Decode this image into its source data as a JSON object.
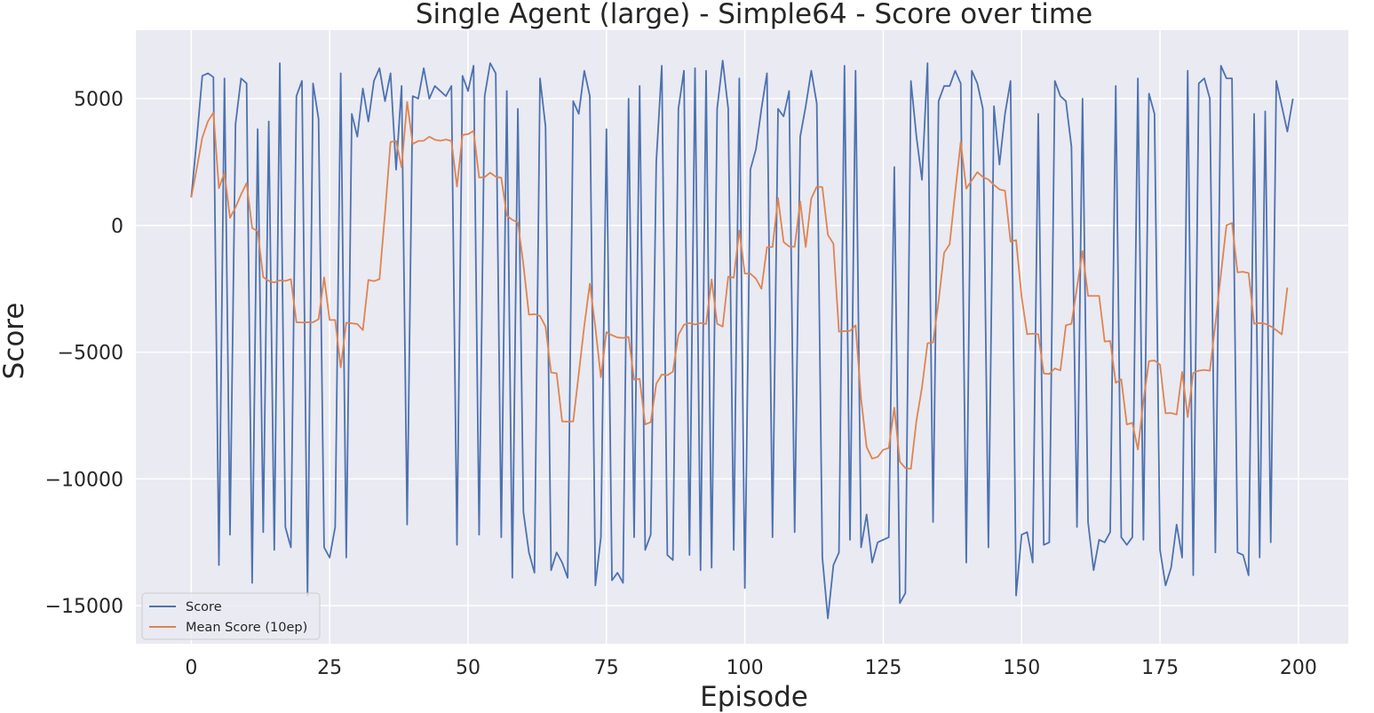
{
  "chart_data": {
    "type": "line",
    "title": "Single Agent (large) - Simple64 - Score over time",
    "xlabel": "Episode",
    "ylabel": "Score",
    "xlim": [
      -10,
      209
    ],
    "ylim": [
      -16500,
      7700
    ],
    "xticks": [
      0,
      25,
      50,
      75,
      100,
      125,
      150,
      175,
      200
    ],
    "yticks": [
      -15000,
      -10000,
      -5000,
      0,
      5000
    ],
    "xtick_labels": [
      "0",
      "25",
      "50",
      "75",
      "100",
      "125",
      "150",
      "175",
      "200"
    ],
    "ytick_labels": [
      "−15000",
      "−10000",
      "−5000",
      "0",
      "5000"
    ],
    "grid": true,
    "legend_position": "lower-left",
    "colors": {
      "background": "#eaeaf2",
      "grid": "#ffffff",
      "score": "#4c72b0",
      "mean": "#dd8452"
    },
    "series": [
      {
        "name": "Score",
        "x_start": 0,
        "values": [
          1100,
          3400,
          5900,
          6000,
          5850,
          -13400,
          5800,
          -12200,
          4000,
          5800,
          5600,
          -14100,
          3800,
          -12100,
          4100,
          -12800,
          6400,
          -11900,
          -12700,
          5100,
          5700,
          -14600,
          5600,
          4200,
          -12700,
          -13100,
          -11900,
          6000,
          -13100,
          4400,
          3500,
          5400,
          4100,
          5700,
          6200,
          4900,
          6000,
          2200,
          5500,
          -11800,
          5100,
          5000,
          6200,
          5000,
          5500,
          5300,
          5100,
          5500,
          -12600,
          5900,
          5300,
          6300,
          -12200,
          5100,
          6400,
          6000,
          -12300,
          5300,
          -13900,
          4600,
          -11300,
          -12900,
          -13700,
          5800,
          3900,
          -13600,
          -12900,
          -13300,
          -13900,
          4900,
          4400,
          6100,
          5100,
          -14200,
          -12300,
          3800,
          -14000,
          -13700,
          -14100,
          5000,
          -12300,
          5500,
          -12800,
          -12200,
          2500,
          6300,
          -13000,
          -13200,
          4600,
          6100,
          -13000,
          6200,
          -13600,
          6100,
          -13500,
          4600,
          6500,
          4600,
          -12800,
          5800,
          -14300,
          2200,
          3000,
          4600,
          6000,
          -12300,
          4600,
          4300,
          5300,
          -12100,
          3500,
          4700,
          6100,
          4800,
          -13100,
          -15500,
          -13400,
          -12900,
          6300,
          -12400,
          6100,
          -12700,
          -11400,
          -13300,
          -12500,
          -12400,
          -12300,
          2300,
          -14900,
          -14500,
          5700,
          3500,
          1800,
          6400,
          -11700,
          4900,
          5500,
          5500,
          6100,
          5600,
          -13300,
          6100,
          5600,
          4600,
          -12700,
          4700,
          2400,
          4400,
          5700,
          -14600,
          -12200,
          -12100,
          -13300,
          4400,
          -12600,
          -12500,
          5700,
          5100,
          4900,
          3100,
          -11900,
          5000,
          -11700,
          -13600,
          -12400,
          -12500,
          -12100,
          5500,
          -12300,
          -12600,
          -12300,
          5800,
          -12400,
          5200,
          4400,
          -12800,
          -14200,
          -13500,
          -11800,
          -13100,
          6100,
          -13800,
          5600,
          5800,
          5000,
          -12900,
          6300,
          5800,
          5800,
          -12900,
          -13000,
          -13800,
          4400,
          -13100,
          4500,
          -12500,
          5700,
          4700,
          3700,
          5000
        ]
      },
      {
        "name": "Mean Score (10ep)",
        "x_start": 0,
        "values": [
          1100,
          2250,
          3467,
          4100,
          4450,
          1467,
          2086,
          300,
          711,
          1220,
          1670,
          -100,
          -230,
          -2040,
          -2190,
          -2250,
          -2170,
          -2190,
          -2120,
          -3820,
          -3830,
          -3820,
          -3820,
          -3700,
          -2050,
          -3730,
          -3730,
          -5600,
          -3840,
          -3860,
          -3890,
          -4130,
          -2150,
          -2200,
          -2120,
          480,
          3290,
          3330,
          2290,
          4870,
          3210,
          3330,
          3340,
          3500,
          3380,
          3340,
          3390,
          3330,
          1530,
          3570,
          3600,
          3730,
          1890,
          1900,
          2080,
          1920,
          1880,
          390,
          220,
          120,
          -1540,
          -3520,
          -3500,
          -3570,
          -3990,
          -5800,
          -5830,
          -7730,
          -7740,
          -7730,
          -5850,
          -3960,
          -2300,
          -4020,
          -5990,
          -4210,
          -4330,
          -4420,
          -4440,
          -4400,
          -6080,
          -6050,
          -7850,
          -7760,
          -6250,
          -5880,
          -5910,
          -5770,
          -4320,
          -3920,
          -3850,
          -3910,
          -3850,
          -3890,
          -2130,
          -3880,
          -3990,
          -2020,
          -2060,
          -200,
          -1900,
          -1900,
          -2100,
          -2500,
          -860,
          -850,
          1080,
          -650,
          -830,
          -840,
          950,
          -850,
          1060,
          1530,
          1510,
          -370,
          -720,
          -4190,
          -4170,
          -4160,
          -3940,
          -6840,
          -8740,
          -9200,
          -9130,
          -8850,
          -8780,
          -7190,
          -9320,
          -9570,
          -9600,
          -7700,
          -6390,
          -4650,
          -4620,
          -3000,
          -1080,
          -740,
          1320,
          3300,
          1450,
          1780,
          2100,
          1910,
          1810,
          1600,
          1420,
          1370,
          -640,
          -580,
          -2820,
          -4290,
          -4270,
          -4290,
          -5840,
          -5860,
          -5640,
          -5720,
          -3940,
          -3880,
          -2450,
          -1010,
          -2780,
          -2780,
          -2780,
          -4580,
          -4560,
          -6210,
          -6070,
          -7850,
          -7790,
          -8840,
          -6940,
          -5350,
          -5330,
          -5490,
          -7410,
          -7400,
          -7460,
          -5780,
          -7560,
          -5820,
          -5730,
          -5700,
          -5730,
          -3890,
          -1930,
          0,
          100,
          -1850,
          -1830,
          -1880,
          -3880,
          -3850,
          -3880,
          -3980,
          -4130,
          -4300,
          -2450
        ]
      }
    ]
  }
}
